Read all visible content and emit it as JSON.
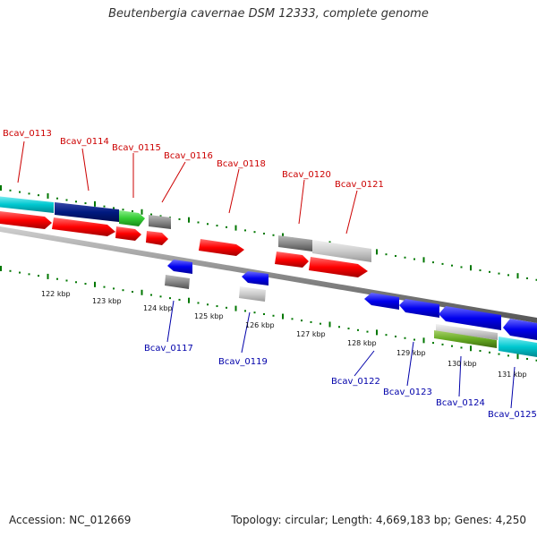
{
  "title": "Beutenbergia cavernae DSM 12333, complete genome",
  "footer": {
    "accession": "Accession: NC_012669",
    "summary": "Topology: circular; Length: 4,669,183 bp; Genes: 4,250"
  },
  "scale_ticks": [
    "122 kbp",
    "123 kbp",
    "124 kbp",
    "125 kbp",
    "126 kbp",
    "127 kbp",
    "128 kbp",
    "129 kbp",
    "130 kbp",
    "131 kbp"
  ],
  "gene_labels_top": [
    "Bcav_0113",
    "Bcav_0114",
    "Bcav_0115",
    "Bcav_0116",
    "Bcav_0118",
    "Bcav_0120",
    "Bcav_0121"
  ],
  "gene_labels_bottom": [
    "Bcav_0117",
    "Bcav_0119",
    "Bcav_0122",
    "Bcav_0123",
    "Bcav_0124",
    "Bcav_0125"
  ],
  "colors": {
    "forward": "#ff0000",
    "reverse": "#0000ee",
    "cyan": "#00c8d0",
    "navy": "#001a80",
    "green": "#33cc33",
    "olive": "#66aa22",
    "grey": "#888888",
    "light_grey": "#cccccc",
    "tick": "#007700",
    "top_label": "#cc0000",
    "bottom_label": "#0000aa"
  }
}
